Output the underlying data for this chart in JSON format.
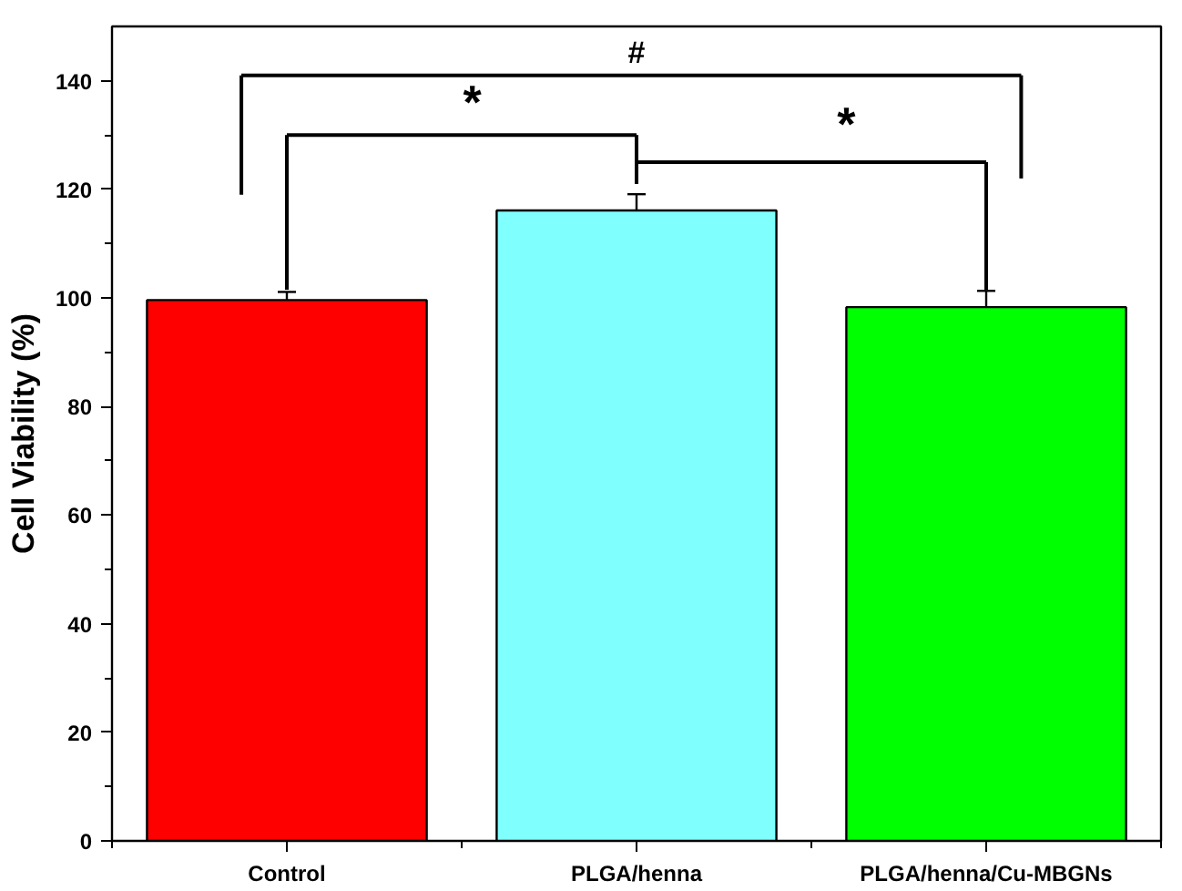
{
  "chart_data": {
    "type": "bar",
    "ylabel": "Cell Viability (%)",
    "categories": [
      "Control",
      "PLGA/henna",
      "PLGA/henna/Cu-MBGNs"
    ],
    "values": [
      99.6,
      116.1,
      98.3
    ],
    "colors": [
      "#ff0000",
      "#80ffff",
      "#00ff00"
    ],
    "errors": [
      1.5,
      3,
      3
    ],
    "ylim": [
      0,
      150
    ],
    "yticks": [
      0,
      20,
      40,
      60,
      80,
      100,
      120,
      140
    ],
    "annotations": [
      "#",
      "*",
      "*"
    ]
  }
}
